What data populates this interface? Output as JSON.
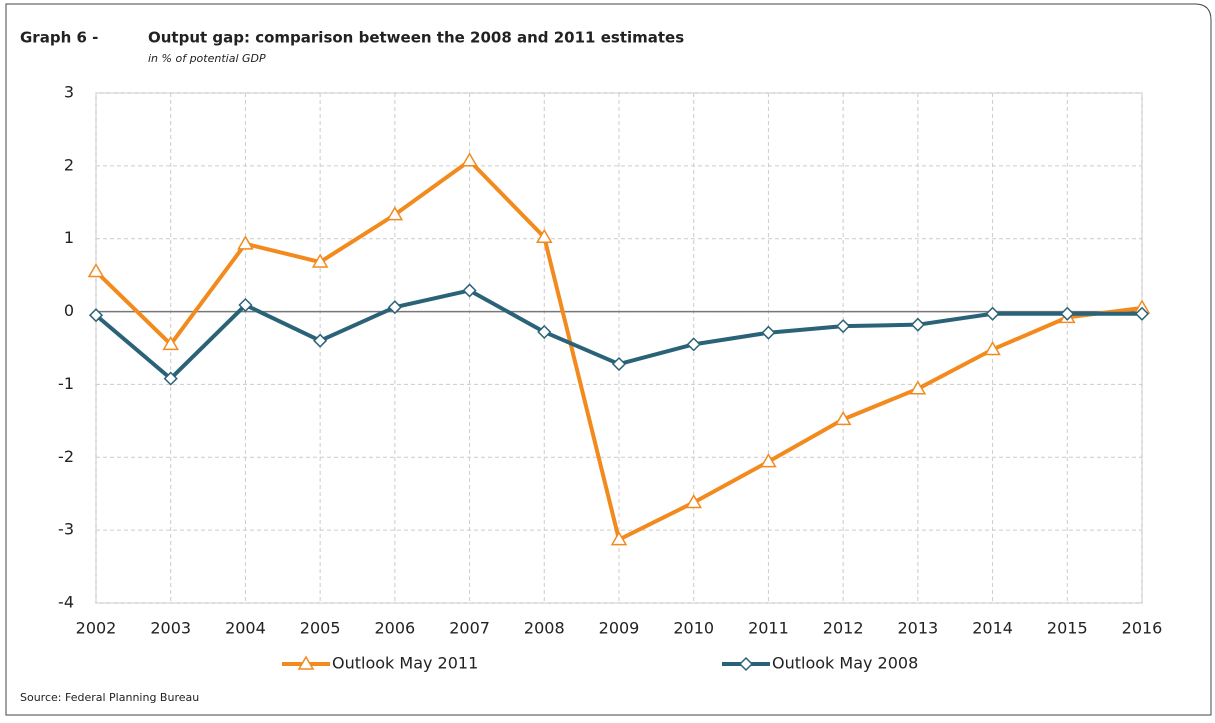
{
  "chart_data": {
    "type": "line",
    "label": "Graph 6 -",
    "title": "Output gap: comparison between the 2008 and 2011 estimates",
    "subtitle": "in % of potential GDP",
    "source": "Source: Federal Planning Bureau",
    "categories": [
      "2002",
      "2003",
      "2004",
      "2005",
      "2006",
      "2007",
      "2008",
      "2009",
      "2010",
      "2011",
      "2012",
      "2013",
      "2014",
      "2015",
      "2016"
    ],
    "series": [
      {
        "name": "Outlook May 2011",
        "color": "#f28a1e",
        "marker": "triangle",
        "values": [
          0.55,
          -0.45,
          0.93,
          0.68,
          1.33,
          2.07,
          1.02,
          -3.13,
          -2.62,
          -2.06,
          -1.48,
          -1.06,
          -0.52,
          -0.08,
          0.05
        ]
      },
      {
        "name": "Outlook May 2008",
        "color": "#2a6378",
        "marker": "diamond",
        "values": [
          -0.05,
          -0.92,
          0.09,
          -0.4,
          0.06,
          0.29,
          -0.28,
          -0.72,
          -0.45,
          -0.29,
          -0.2,
          -0.18,
          -0.03,
          -0.03,
          -0.03
        ]
      }
    ],
    "ylim": [
      -4,
      3
    ],
    "yticks": [
      -4,
      -3,
      -2,
      -1,
      0,
      1,
      2,
      3
    ],
    "grid": true,
    "legend": "bottom"
  }
}
